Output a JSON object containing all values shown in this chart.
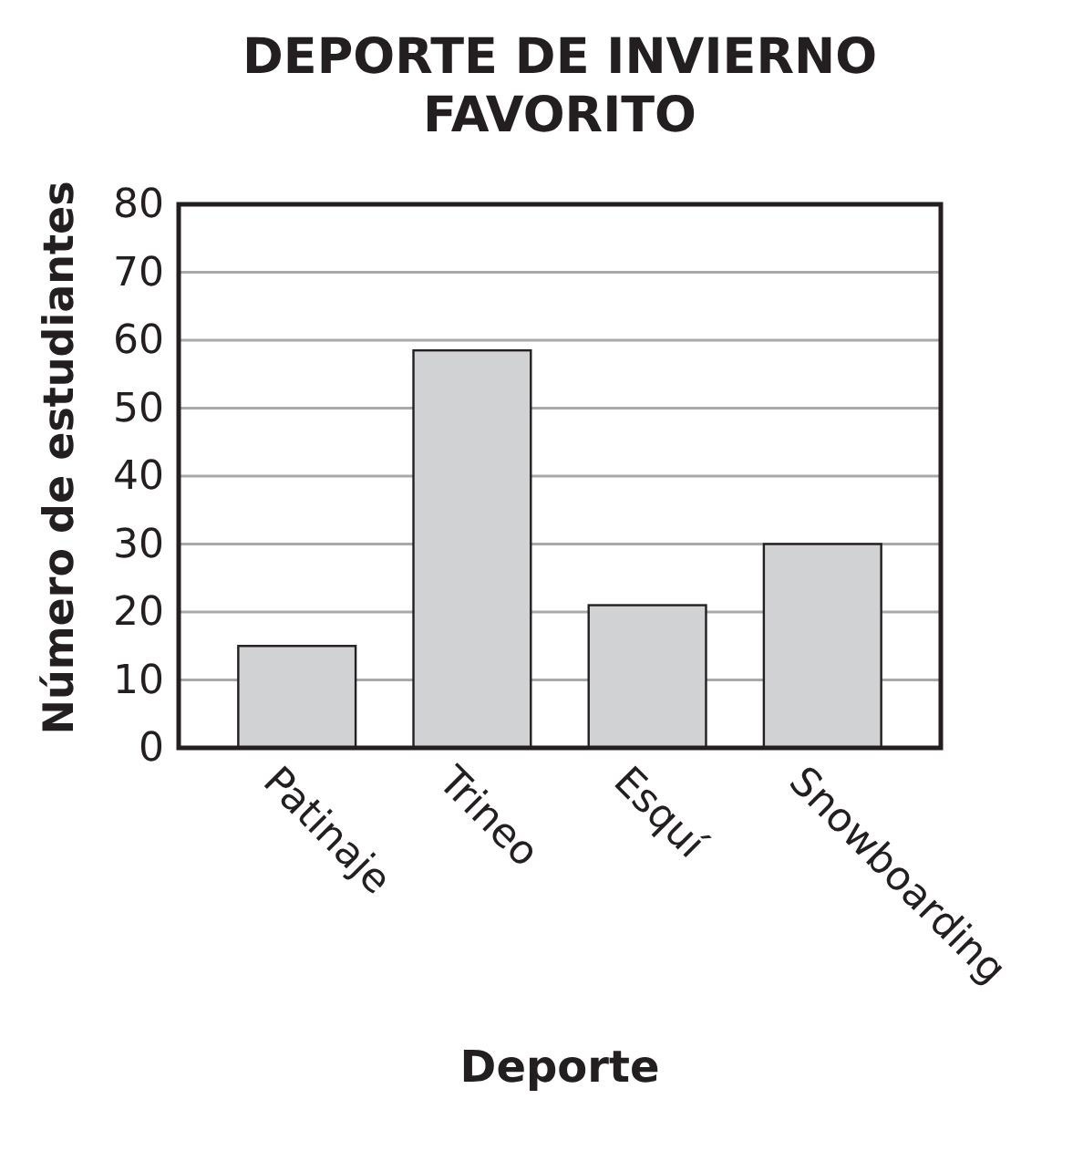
{
  "chart_data": {
    "type": "bar",
    "title": "DEPORTE DE INVIERNO FAVORITO",
    "xlabel": "Deporte",
    "ylabel": "Número de estudiantes",
    "categories": [
      "Patinaje",
      "Trineo",
      "Esquí",
      "Snowboarding"
    ],
    "values": [
      15,
      58.5,
      21,
      30
    ],
    "color": "#d1d2d4",
    "ylim": [
      0,
      80
    ],
    "yticks": [
      0,
      10,
      20,
      30,
      40,
      50,
      60,
      70,
      80
    ],
    "grid": "y"
  }
}
